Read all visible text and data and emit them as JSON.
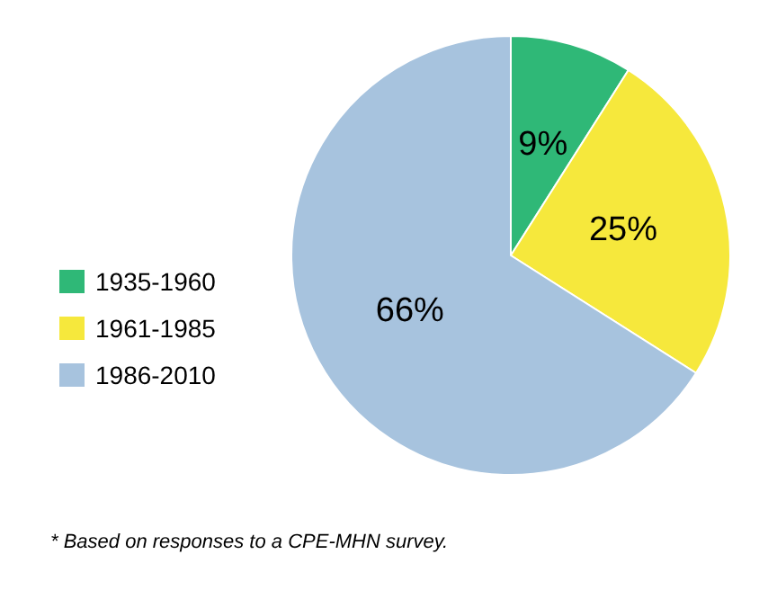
{
  "chart_data": {
    "type": "pie",
    "categories": [
      "1935-1960",
      "1961-1985",
      "1986-2010"
    ],
    "values": [
      9,
      25,
      66
    ],
    "colors": [
      "#2fb877",
      "#f6e83c",
      "#a7c3de"
    ],
    "value_labels": [
      "9%",
      "25%",
      "66%"
    ],
    "legend": "left",
    "annotations": [
      "* Based on responses to a CPE-MHN survey."
    ]
  }
}
